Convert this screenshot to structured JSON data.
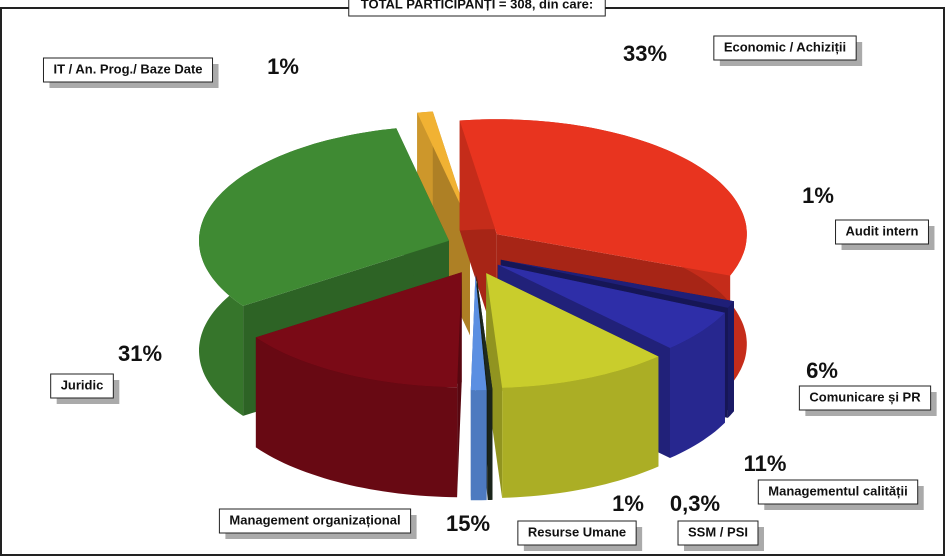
{
  "chart_data": {
    "type": "pie3d",
    "title": "TOTAL PARTICIPANȚI = 308, din care:",
    "categories": [
      "Economic / Achiziții",
      "Audit intern",
      "Comunicare și PR",
      "Managementul calității",
      "SSM / PSI",
      "Resurse Umane",
      "Management organizațional",
      "Juridic",
      "IT / An. Prog./ Baze Date"
    ],
    "values": [
      33,
      1,
      6,
      11,
      0.3,
      1,
      15,
      31,
      1
    ],
    "value_labels": [
      "33%",
      "1%",
      "6%",
      "11%",
      "0,3%",
      "1%",
      "15%",
      "31%",
      "1%"
    ],
    "colors": [
      "#e8341f",
      "#1f1f78",
      "#2e2ea8",
      "#c9cd2c",
      "#1e2a1e",
      "#5b8fe2",
      "#7a0a16",
      "#3f8a33",
      "#f1b233"
    ]
  }
}
